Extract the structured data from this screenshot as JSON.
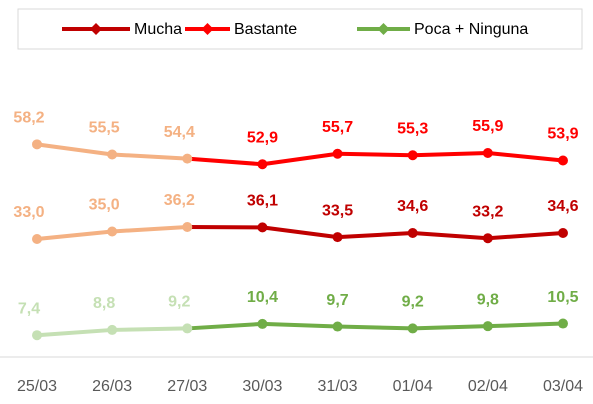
{
  "chart_data": {
    "type": "line",
    "categories": [
      "25/03",
      "26/03",
      "27/03",
      "30/03",
      "31/03",
      "01/04",
      "02/04",
      "03/04"
    ],
    "early_points": 3,
    "ylim": [
      0,
      70
    ],
    "legend": "top",
    "series": [
      {
        "name": "Mucha",
        "color": "#c00000",
        "early_color": "#f4b183",
        "values": [
          33.0,
          35.0,
          36.2,
          36.1,
          33.5,
          34.6,
          33.2,
          34.6
        ],
        "value_labels": [
          "33,0",
          "35,0",
          "36,2",
          "36,1",
          "33,5",
          "34,6",
          "33,2",
          "34,6"
        ]
      },
      {
        "name": "Bastante",
        "color": "#ff0000",
        "early_color": "#f4b183",
        "values": [
          58.2,
          55.5,
          54.4,
          52.9,
          55.7,
          55.3,
          55.9,
          53.9
        ],
        "value_labels": [
          "58,2",
          "55,5",
          "54,4",
          "52,9",
          "55,7",
          "55,3",
          "55,9",
          "53,9"
        ]
      },
      {
        "name": "Poca + Ninguna",
        "color": "#70ad47",
        "early_color": "#c5e0b4",
        "values": [
          7.4,
          8.8,
          9.2,
          10.4,
          9.7,
          9.2,
          9.8,
          10.5
        ],
        "value_labels": [
          "7,4",
          "8,8",
          "9,2",
          "10,4",
          "9,7",
          "9,2",
          "9,8",
          "10,5"
        ]
      }
    ]
  }
}
